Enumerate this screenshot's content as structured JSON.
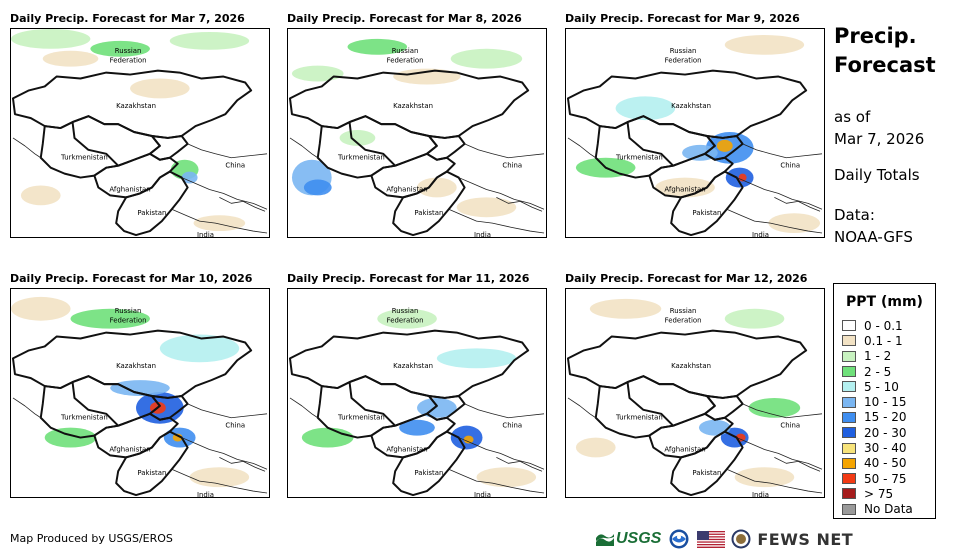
{
  "panels": [
    {
      "title": "Daily Precip. Forecast for Mar 7, 2026"
    },
    {
      "title": "Daily Precip. Forecast for Mar 8, 2026"
    },
    {
      "title": "Daily Precip. Forecast for Mar 9, 2026"
    },
    {
      "title": "Daily Precip. Forecast for Mar 10, 2026"
    },
    {
      "title": "Daily Precip. Forecast for Mar 11, 2026"
    },
    {
      "title": "Daily Precip. Forecast for Mar 12, 2026"
    }
  ],
  "countries": {
    "russia_line1": "Russian",
    "russia_line2": "Federation",
    "kazakhstan": "Kazakhstan",
    "turkmenistan": "Turkmenistan",
    "afghanistan": "Afghanistan",
    "pakistan": "Pakistan",
    "india": "India",
    "china": "China"
  },
  "side": {
    "title_line1": "Precip.",
    "title_line2": "Forecast",
    "asof_line1": "as of",
    "asof_line2": "Mar 7, 2026",
    "daily_totals": "Daily Totals",
    "data_line1": "Data:",
    "data_line2": "NOAA-GFS"
  },
  "legend": {
    "title": "PPT (mm)",
    "items": [
      {
        "label": "0 - 0.1",
        "color": "#ffffff"
      },
      {
        "label": "0.1 - 1",
        "color": "#f2e2c4"
      },
      {
        "label": "1 - 2",
        "color": "#c8f2c0"
      },
      {
        "label": "2 - 5",
        "color": "#6fe07a"
      },
      {
        "label": "5 - 10",
        "color": "#b4f0f0"
      },
      {
        "label": "10 - 15",
        "color": "#7ab6f2"
      },
      {
        "label": "15 - 20",
        "color": "#3f8ef0"
      },
      {
        "label": "20 - 30",
        "color": "#1f5fe0"
      },
      {
        "label": "30 - 40",
        "color": "#f7e37a"
      },
      {
        "label": "40 - 50",
        "color": "#f5a400"
      },
      {
        "label": "50 - 75",
        "color": "#f23a14"
      },
      {
        "label": "> 75",
        "color": "#a51c1c"
      },
      {
        "label": "No Data",
        "color": "#9a9a9a"
      }
    ]
  },
  "footer": {
    "credit": "Map Produced by USGS/EROS",
    "usgs": "USGS",
    "fews": "FEWS NET"
  },
  "icons": [
    "usgs-logo-icon",
    "noaa-logo-icon",
    "us-flag-icon",
    "usaid-seal-icon"
  ]
}
